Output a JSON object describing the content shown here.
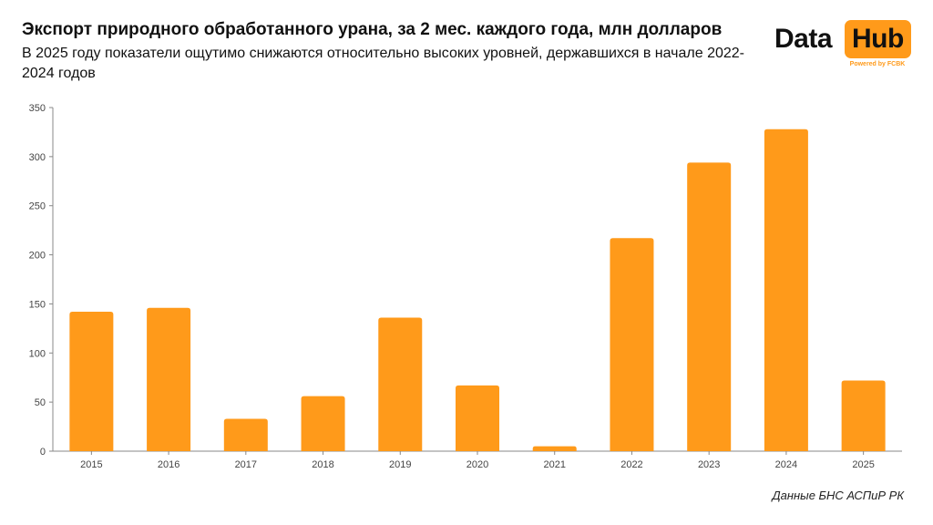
{
  "header": {
    "title": "Экспорт природного обработанного урана, за 2 мес. каждого года, млн долларов",
    "subtitle": "В 2025 году показатели ощутимо снижаются относительно высоких уровней, державшихся в начале 2022-2024 годов"
  },
  "logo": {
    "word1": "Data",
    "word2": "Hub",
    "tagline": "Powered by FCBK",
    "accent_color": "#ff9a1a"
  },
  "source": "Данные БНС АСПиР РК",
  "chart_data": {
    "type": "bar",
    "title": "Экспорт природного обработанного урана, за 2 мес. каждого года, млн долларов",
    "xlabel": "",
    "ylabel": "",
    "categories": [
      "2015",
      "2016",
      "2017",
      "2018",
      "2019",
      "2020",
      "2021",
      "2022",
      "2023",
      "2024",
      "2025"
    ],
    "values": [
      142,
      146,
      33,
      56,
      136,
      67,
      5,
      217,
      294,
      328,
      72
    ],
    "ylim": [
      0,
      350
    ],
    "yticks": [
      0,
      50,
      100,
      150,
      200,
      250,
      300,
      350
    ],
    "bar_color": "#ff9a1a",
    "grid": false,
    "legend": "none"
  }
}
